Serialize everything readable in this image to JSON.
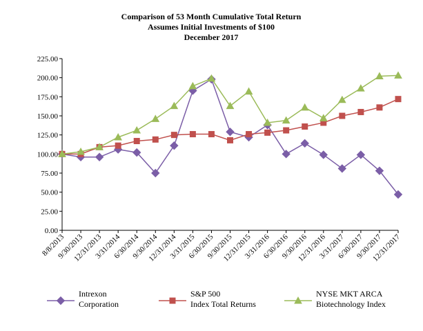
{
  "chart_data": {
    "type": "line",
    "title_lines": [
      "Comparison of 53 Month Cumulative Total Return",
      "Assumes Initial Investments of $100",
      "December 2017"
    ],
    "xlabel": "",
    "ylabel": "",
    "ylim": [
      0,
      225
    ],
    "y_ticks": [
      "0.00",
      "25.00",
      "50.00",
      "75.00",
      "100.00",
      "125.00",
      "150.00",
      "175.00",
      "200.00",
      "225.00"
    ],
    "y_tick_values": [
      0,
      25,
      50,
      75,
      100,
      125,
      150,
      175,
      200,
      225
    ],
    "categories": [
      "8/8/2013",
      "9/30/2013",
      "12/31/2013",
      "3/31/2014",
      "6/30/2014",
      "9/30/2014",
      "12/31/2014",
      "3/31/2015",
      "6/30/2015",
      "9/30/2015",
      "12/31/2015",
      "3/31/2016",
      "6/30/2016",
      "9/30/2016",
      "12/31/2016",
      "3/31/2017",
      "6/30/2017",
      "9/30/2017",
      "12/31/2017"
    ],
    "grid": false,
    "legend_position": "bottom",
    "series": [
      {
        "name": "Intrexon Corporation",
        "legend_lines": [
          "Intrexon",
          "Corporation"
        ],
        "color": "#7B5EA7",
        "marker": "diamond",
        "values": [
          100,
          96,
          96,
          106,
          102,
          75,
          111,
          183,
          198,
          129,
          122,
          138,
          100,
          114,
          99,
          81,
          99,
          78,
          47
        ]
      },
      {
        "name": "S&P 500 Index Total Returns",
        "legend_lines": [
          "S&P 500",
          "Index Total Returns"
        ],
        "color": "#C0504D",
        "marker": "square",
        "values": [
          100,
          100,
          109,
          111,
          117,
          119,
          125,
          126,
          126,
          118,
          126,
          128,
          131,
          136,
          141,
          150,
          155,
          161,
          172
        ]
      },
      {
        "name": "NYSE MKT ARCA Biotechnology Index",
        "legend_lines": [
          "NYSE MKT ARCA",
          "Biotechnology Index"
        ],
        "color": "#9BBB59",
        "marker": "triangle",
        "values": [
          100,
          103,
          109,
          122,
          131,
          146,
          163,
          189,
          199,
          163,
          182,
          141,
          144,
          161,
          147,
          171,
          186,
          202,
          203
        ]
      }
    ]
  }
}
